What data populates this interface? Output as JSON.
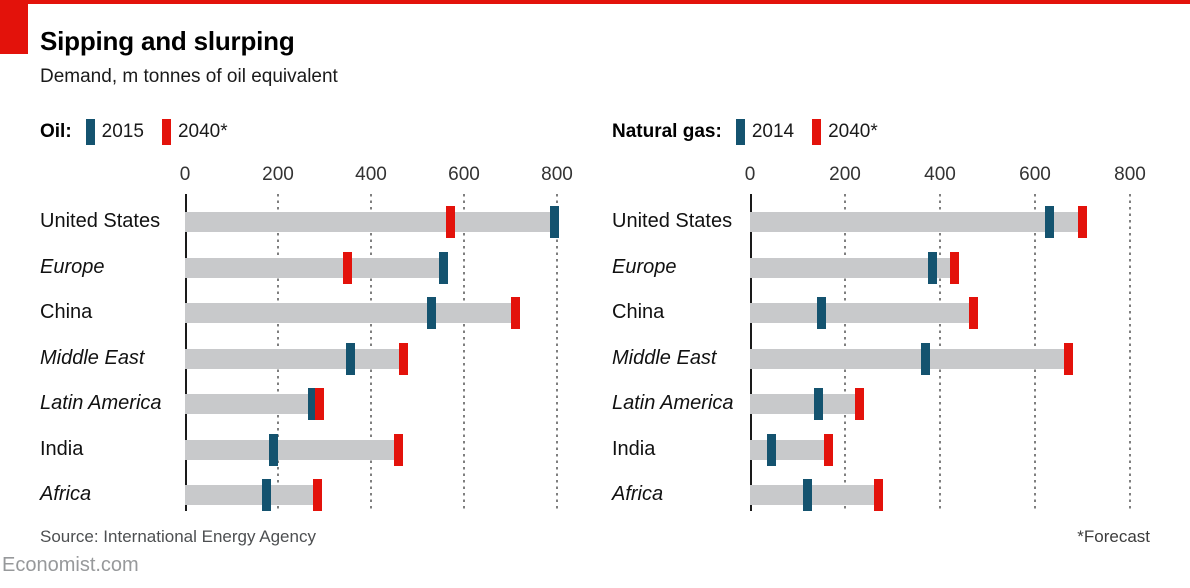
{
  "header": {
    "title": "Sipping and slurping",
    "subtitle": "Demand, m tonnes of oil equivalent"
  },
  "footer": {
    "source": "Source: International Energy Agency",
    "forecast_note": "*Forecast",
    "site": "Economist.com"
  },
  "colors": {
    "accent_red": "#E3120B",
    "series_blue": "#14536F",
    "bar_gray": "#C8C9CB"
  },
  "chart_data": [
    {
      "type": "bar",
      "subtype": "range-bar",
      "panel": "Oil",
      "legend_label": "Oil:",
      "x_ticks": [
        0,
        200,
        400,
        600,
        800
      ],
      "xlim": [
        0,
        870
      ],
      "grid": "dotted-vertical",
      "categories": [
        "United States",
        "Europe",
        "China",
        "Middle East",
        "Latin America",
        "India",
        "Africa"
      ],
      "italic_flags": [
        false,
        true,
        false,
        true,
        true,
        false,
        true
      ],
      "series": [
        {
          "name": "2015",
          "color": "#14536F",
          "values": [
            795,
            555,
            530,
            355,
            275,
            190,
            175
          ]
        },
        {
          "name": "2040*",
          "color": "#E3120B",
          "values": [
            570,
            350,
            710,
            470,
            290,
            460,
            285
          ]
        }
      ]
    },
    {
      "type": "bar",
      "subtype": "range-bar",
      "panel": "Natural gas",
      "legend_label": "Natural gas:",
      "x_ticks": [
        0,
        200,
        400,
        600,
        800
      ],
      "xlim": [
        0,
        870
      ],
      "grid": "dotted-vertical",
      "categories": [
        "United States",
        "Europe",
        "China",
        "Middle East",
        "Latin America",
        "India",
        "Africa"
      ],
      "italic_flags": [
        false,
        true,
        false,
        true,
        true,
        false,
        true
      ],
      "series": [
        {
          "name": "2014",
          "color": "#14536F",
          "values": [
            630,
            385,
            150,
            370,
            145,
            45,
            120
          ]
        },
        {
          "name": "2040*",
          "color": "#E3120B",
          "values": [
            700,
            430,
            470,
            670,
            230,
            165,
            270
          ]
        }
      ]
    }
  ]
}
